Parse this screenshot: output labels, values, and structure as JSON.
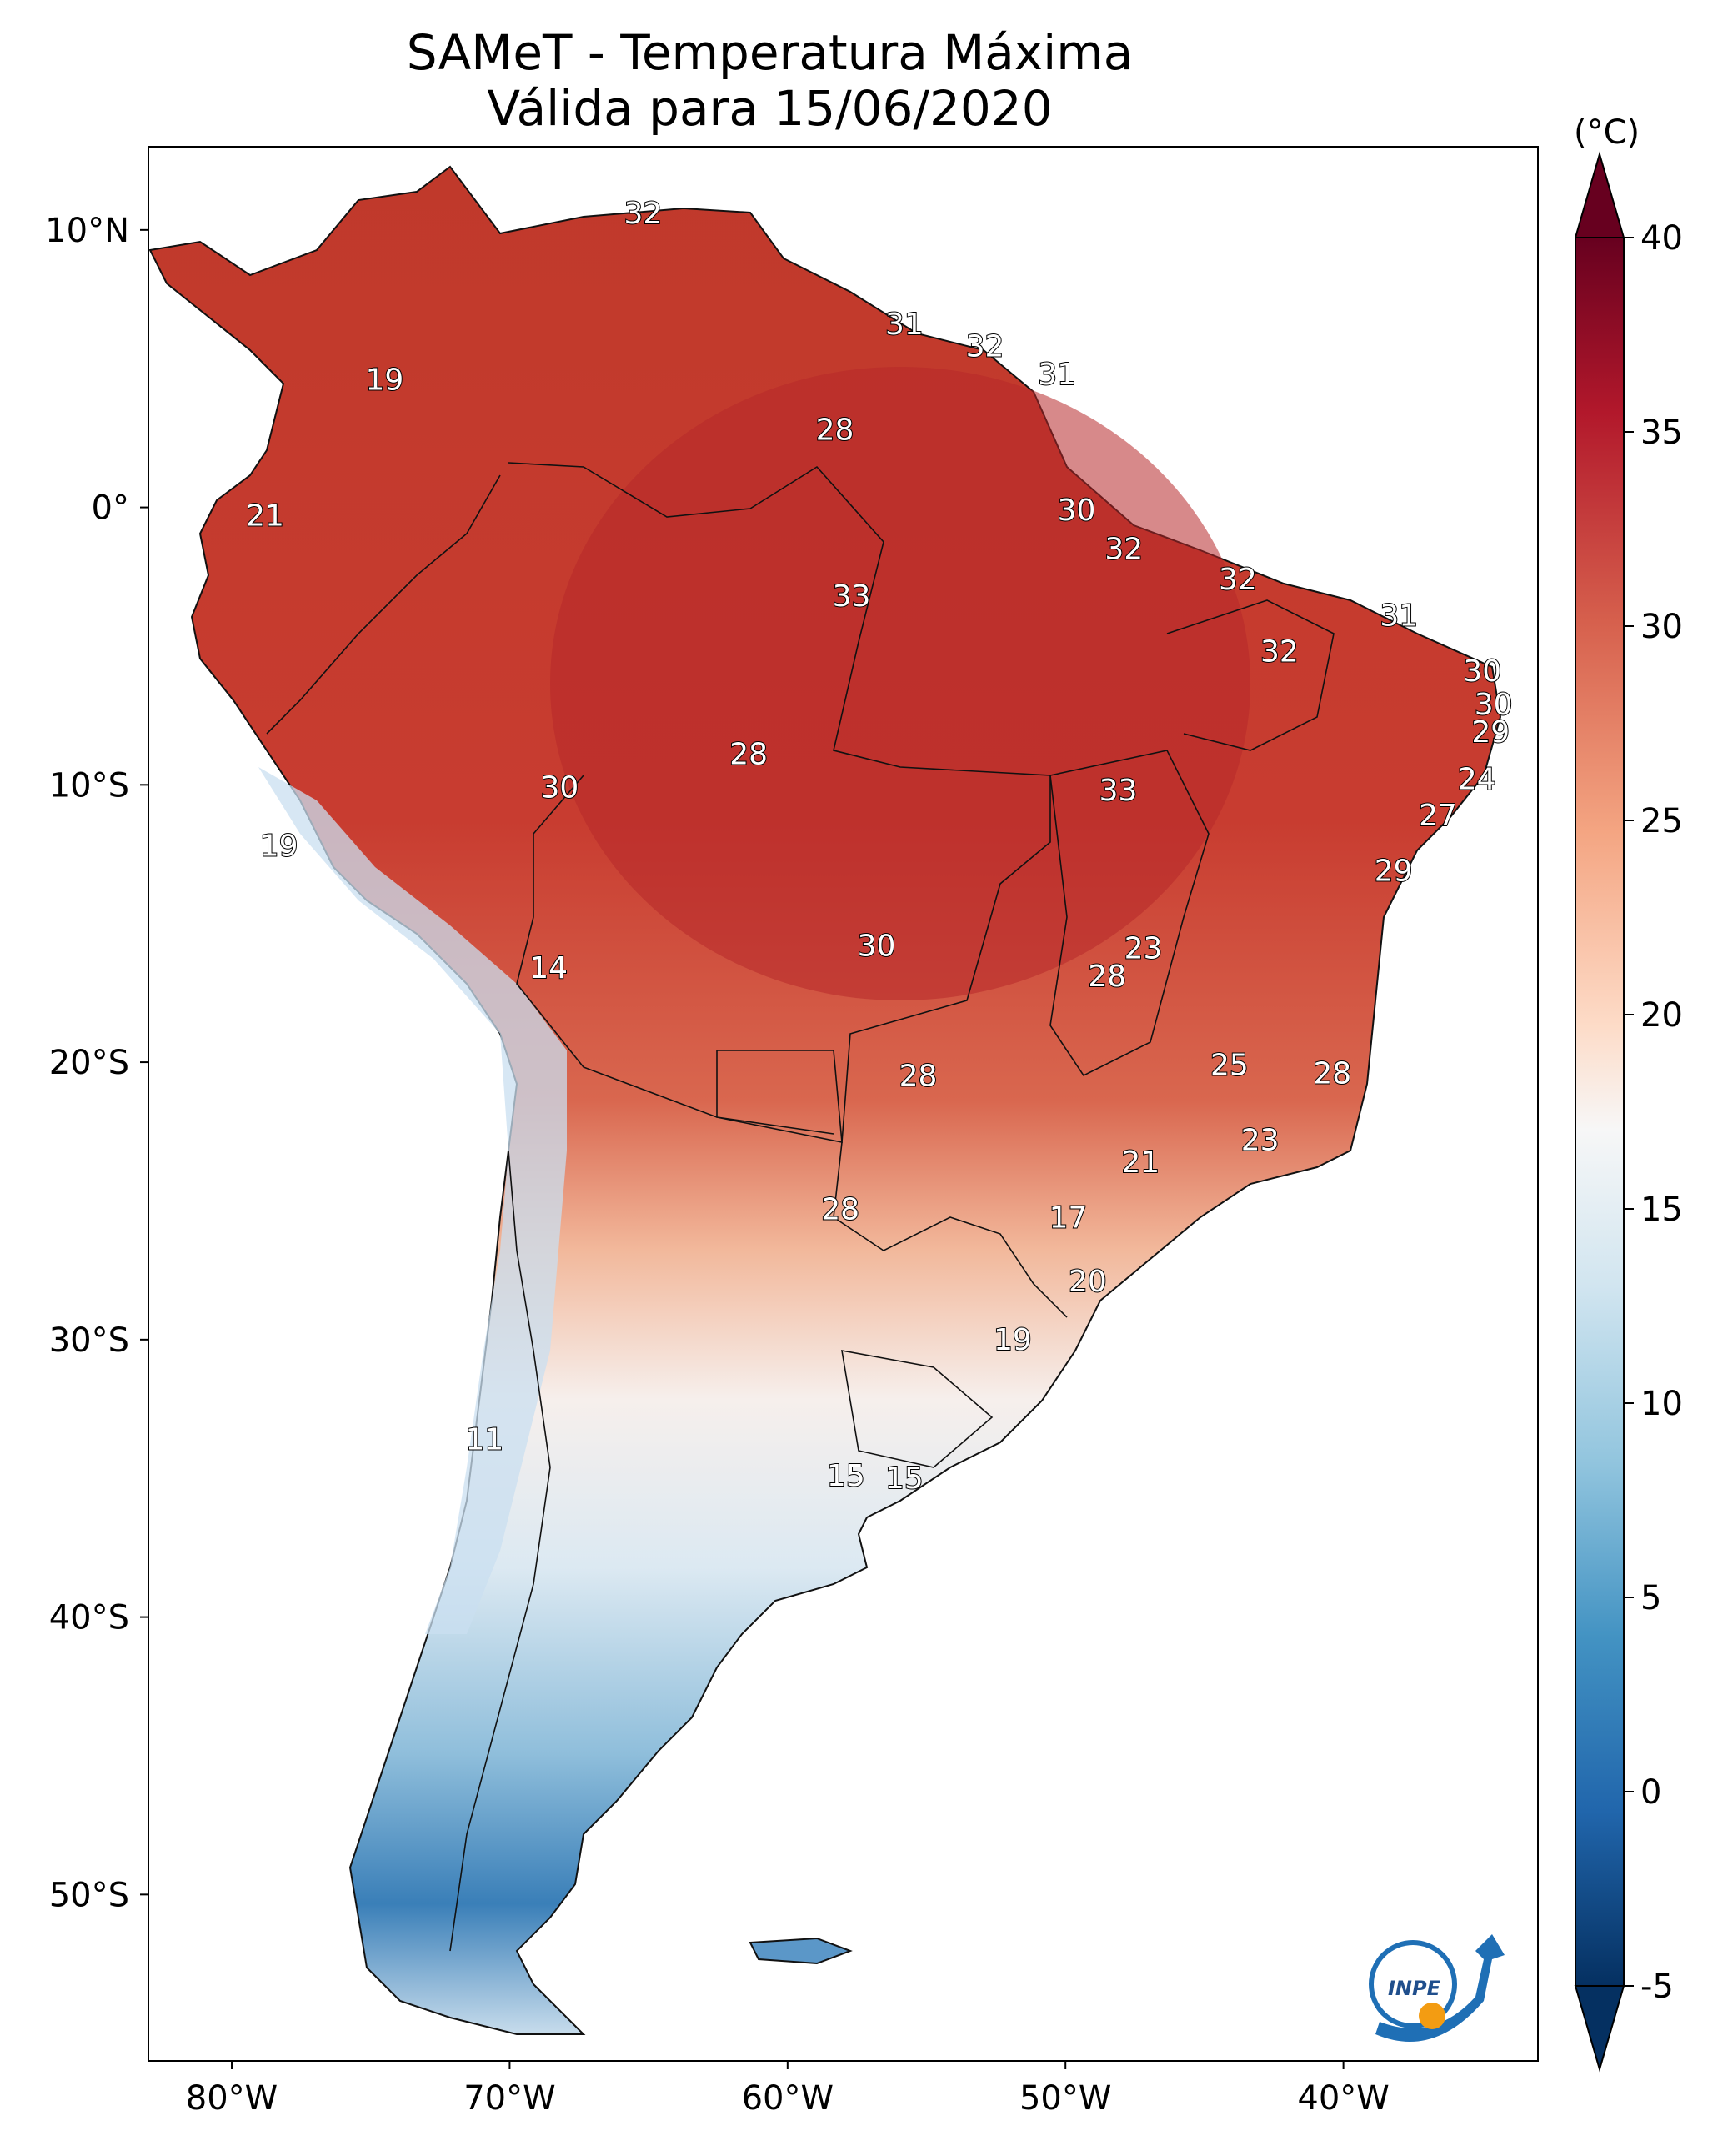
{
  "title": {
    "line1": "SAMeT - Temperatura Máxima",
    "line2": "Válida para 15/06/2020"
  },
  "colorbar": {
    "unit": "(°C)",
    "ticks": [
      "40",
      "35",
      "30",
      "25",
      "20",
      "15",
      "10",
      "5",
      "0",
      "-5"
    ],
    "colors": [
      "#67001f",
      "#b2182b",
      "#d6604d",
      "#f4a582",
      "#fddbc7",
      "#f7f7f7",
      "#d1e5f0",
      "#92c5de",
      "#4393c3",
      "#2166ac",
      "#053061"
    ]
  },
  "axes": {
    "lat_labels": [
      "10°N",
      "0°",
      "10°S",
      "20°S",
      "30°S",
      "40°S",
      "50°S"
    ],
    "lon_labels": [
      "80°W",
      "70°W",
      "60°W",
      "50°W",
      "40°W"
    ]
  },
  "temperature_labels": [
    {
      "value": "32",
      "lon": -65.2,
      "lat": 10.6
    },
    {
      "value": "31",
      "lon": -55.8,
      "lat": 6.6
    },
    {
      "value": "32",
      "lon": -52.9,
      "lat": 5.8
    },
    {
      "value": "31",
      "lon": -50.3,
      "lat": 4.8
    },
    {
      "value": "19",
      "lon": -74.5,
      "lat": 4.6
    },
    {
      "value": "28",
      "lon": -58.3,
      "lat": 2.8
    },
    {
      "value": "21",
      "lon": -78.8,
      "lat": -0.3
    },
    {
      "value": "30",
      "lon": -49.6,
      "lat": -0.1
    },
    {
      "value": "32",
      "lon": -47.9,
      "lat": -1.5
    },
    {
      "value": "32",
      "lon": -43.8,
      "lat": -2.6
    },
    {
      "value": "33",
      "lon": -57.7,
      "lat": -3.2
    },
    {
      "value": "31",
      "lon": -38.0,
      "lat": -3.9
    },
    {
      "value": "32",
      "lon": -42.3,
      "lat": -5.2
    },
    {
      "value": "30",
      "lon": -35.0,
      "lat": -5.9
    },
    {
      "value": "30",
      "lon": -34.6,
      "lat": -7.1
    },
    {
      "value": "29",
      "lon": -34.7,
      "lat": -8.1
    },
    {
      "value": "28",
      "lon": -61.4,
      "lat": -8.9
    },
    {
      "value": "24",
      "lon": -35.2,
      "lat": -9.8
    },
    {
      "value": "30",
      "lon": -68.2,
      "lat": -10.1
    },
    {
      "value": "33",
      "lon": -48.1,
      "lat": -10.2
    },
    {
      "value": "27",
      "lon": -36.6,
      "lat": -11.1
    },
    {
      "value": "19",
      "lon": -78.3,
      "lat": -12.2
    },
    {
      "value": "29",
      "lon": -38.2,
      "lat": -13.1
    },
    {
      "value": "30",
      "lon": -56.8,
      "lat": -15.8
    },
    {
      "value": "23",
      "lon": -47.2,
      "lat": -15.9
    },
    {
      "value": "14",
      "lon": -68.6,
      "lat": -16.6
    },
    {
      "value": "28",
      "lon": -48.5,
      "lat": -16.9
    },
    {
      "value": "25",
      "lon": -44.1,
      "lat": -20.1
    },
    {
      "value": "28",
      "lon": -55.3,
      "lat": -20.5
    },
    {
      "value": "28",
      "lon": -40.4,
      "lat": -20.4
    },
    {
      "value": "23",
      "lon": -43.0,
      "lat": -22.8
    },
    {
      "value": "21",
      "lon": -47.3,
      "lat": -23.6
    },
    {
      "value": "28",
      "lon": -58.1,
      "lat": -25.3
    },
    {
      "value": "17",
      "lon": -49.9,
      "lat": -25.6
    },
    {
      "value": "20",
      "lon": -49.2,
      "lat": -27.9
    },
    {
      "value": "19",
      "lon": -51.9,
      "lat": -30.0
    },
    {
      "value": "11",
      "lon": -70.9,
      "lat": -33.6
    },
    {
      "value": "15",
      "lon": -57.9,
      "lat": -34.9
    },
    {
      "value": "15",
      "lon": -55.8,
      "lat": -35.0
    }
  ],
  "logo": {
    "text": "INPE"
  }
}
